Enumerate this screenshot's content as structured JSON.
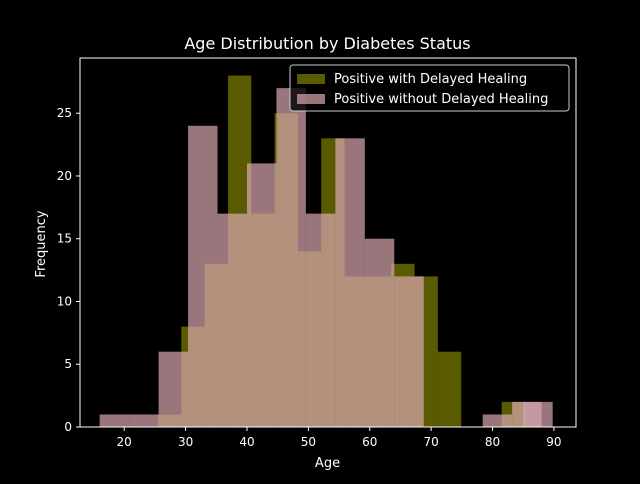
{
  "chart_data": {
    "type": "histogram",
    "title": "Age Distribution by Diabetes Status",
    "xlabel": "Age",
    "ylabel": "Frequency",
    "xlim": [
      12.8,
      93.6
    ],
    "ylim": [
      0,
      29.4
    ],
    "xticks": [
      20,
      30,
      40,
      50,
      60,
      70,
      80,
      90
    ],
    "yticks": [
      0,
      5,
      10,
      15,
      20,
      25
    ],
    "grid": false,
    "legend_position": "top-right",
    "series": [
      {
        "name": "Positive with Delayed Healing",
        "color": "#808000",
        "bin_width": 3.8,
        "bins": [
          {
            "x": 25.5,
            "value": 1
          },
          {
            "x": 29.3,
            "value": 8
          },
          {
            "x": 33.1,
            "value": 13
          },
          {
            "x": 36.9,
            "value": 28
          },
          {
            "x": 40.7,
            "value": 17
          },
          {
            "x": 44.5,
            "value": 25
          },
          {
            "x": 48.3,
            "value": 14
          },
          {
            "x": 52.1,
            "value": 23
          },
          {
            "x": 55.9,
            "value": 12
          },
          {
            "x": 59.7,
            "value": 12
          },
          {
            "x": 63.5,
            "value": 13
          },
          {
            "x": 67.3,
            "value": 12
          },
          {
            "x": 71.1,
            "value": 6
          },
          {
            "x": 74.9,
            "value": 0
          },
          {
            "x": 78.7,
            "value": 0
          },
          {
            "x": 81.5,
            "value": 2
          }
        ]
      },
      {
        "name": "Positive without Delayed Healing",
        "color": "#d8a8b0",
        "bin_width": 4.8,
        "bins": [
          {
            "x": 16.0,
            "value": 1
          },
          {
            "x": 20.8,
            "value": 1
          },
          {
            "x": 25.6,
            "value": 6
          },
          {
            "x": 30.4,
            "value": 24
          },
          {
            "x": 35.2,
            "value": 17
          },
          {
            "x": 40.0,
            "value": 21
          },
          {
            "x": 44.8,
            "value": 27
          },
          {
            "x": 49.6,
            "value": 17
          },
          {
            "x": 54.4,
            "value": 23
          },
          {
            "x": 59.2,
            "value": 15
          },
          {
            "x": 64.0,
            "value": 12
          },
          {
            "x": 68.8,
            "value": 0
          },
          {
            "x": 73.6,
            "value": 0
          },
          {
            "x": 78.4,
            "value": 1
          },
          {
            "x": 83.2,
            "value": 2
          },
          {
            "x": 85.0,
            "value": 2
          }
        ]
      }
    ]
  }
}
